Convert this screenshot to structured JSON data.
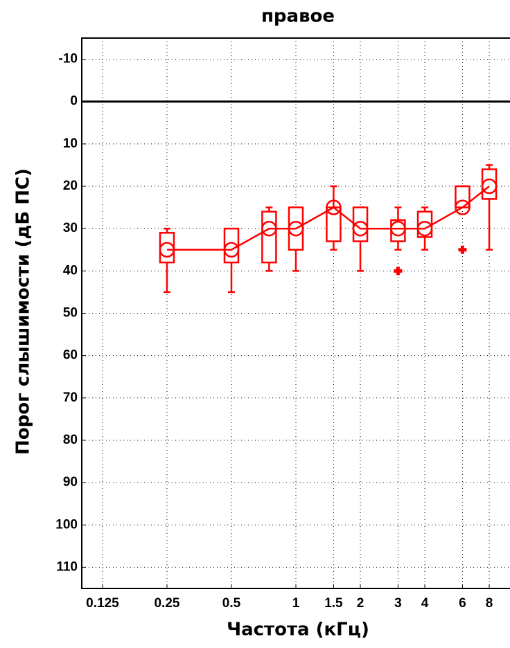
{
  "chart_data": {
    "type": "box",
    "title": "правое",
    "x_label": "Частота (кГц)",
    "y_label": "Порог слышимости (дБ ПС)",
    "color": "#ff0000",
    "x_log": true,
    "y_inverted": true,
    "grid": true,
    "zero_line": 0,
    "xlim": [
      0.1,
      10
    ],
    "xticks": [
      0.125,
      0.25,
      0.5,
      1,
      1.5,
      2,
      3,
      4,
      6,
      8
    ],
    "ylim": [
      -15,
      115
    ],
    "yticks": [
      -10,
      0,
      10,
      20,
      30,
      40,
      50,
      60,
      70,
      80,
      90,
      100,
      110
    ],
    "x": [
      0.25,
      0.5,
      0.75,
      1,
      1.5,
      2,
      3,
      4,
      6,
      8
    ],
    "whisker_low": [
      30,
      30,
      25,
      25,
      20,
      25,
      25,
      25,
      20,
      15
    ],
    "q1": [
      31,
      30,
      26,
      25,
      25,
      25,
      28,
      26,
      20,
      16
    ],
    "median": [
      35,
      35,
      30,
      30,
      25,
      30,
      30,
      30,
      25,
      20
    ],
    "q3": [
      38,
      38,
      38,
      35,
      33,
      33,
      33,
      32,
      25,
      23
    ],
    "whisker_high": [
      45,
      45,
      40,
      40,
      35,
      40,
      35,
      35,
      25,
      35
    ],
    "outliers": [
      {
        "x": 3,
        "y": 40
      },
      {
        "x": 6,
        "y": 35
      }
    ]
  }
}
